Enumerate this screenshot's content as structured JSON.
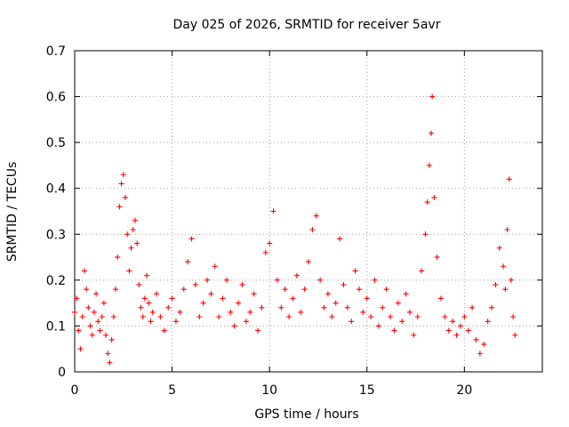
{
  "chart_data": {
    "type": "scatter",
    "title": "Day 025 of 2026, SRMTID for receiver 5avr",
    "xlabel": "GPS time / hours",
    "ylabel": "SRMTID / TECUs",
    "xlim": [
      0,
      24
    ],
    "ylim": [
      0,
      0.7
    ],
    "xticks": [
      0,
      5,
      10,
      15,
      20
    ],
    "yticks": [
      0,
      0.1,
      0.2,
      0.3,
      0.4,
      0.5,
      0.6,
      0.7
    ],
    "grid": true,
    "marker": "+",
    "color": "#ff0000",
    "series": [
      {
        "name": "SRMTID",
        "points": [
          [
            0.0,
            0.13
          ],
          [
            0.1,
            0.16
          ],
          [
            0.2,
            0.09
          ],
          [
            0.3,
            0.05
          ],
          [
            0.4,
            0.12
          ],
          [
            0.5,
            0.22
          ],
          [
            0.6,
            0.18
          ],
          [
            0.7,
            0.14
          ],
          [
            0.8,
            0.1
          ],
          [
            0.9,
            0.08
          ],
          [
            1.0,
            0.13
          ],
          [
            1.1,
            0.17
          ],
          [
            1.2,
            0.11
          ],
          [
            1.3,
            0.09
          ],
          [
            1.4,
            0.12
          ],
          [
            1.5,
            0.15
          ],
          [
            1.6,
            0.08
          ],
          [
            1.7,
            0.04
          ],
          [
            1.8,
            0.02
          ],
          [
            1.9,
            0.07
          ],
          [
            2.0,
            0.12
          ],
          [
            2.1,
            0.18
          ],
          [
            2.2,
            0.25
          ],
          [
            2.3,
            0.36
          ],
          [
            2.4,
            0.41
          ],
          [
            2.5,
            0.43
          ],
          [
            2.6,
            0.38
          ],
          [
            2.7,
            0.3
          ],
          [
            2.8,
            0.22
          ],
          [
            2.9,
            0.27
          ],
          [
            3.0,
            0.31
          ],
          [
            3.1,
            0.33
          ],
          [
            3.2,
            0.28
          ],
          [
            3.3,
            0.19
          ],
          [
            3.4,
            0.14
          ],
          [
            3.5,
            0.12
          ],
          [
            3.6,
            0.16
          ],
          [
            3.7,
            0.21
          ],
          [
            3.8,
            0.15
          ],
          [
            3.9,
            0.11
          ],
          [
            4.0,
            0.13
          ],
          [
            4.2,
            0.17
          ],
          [
            4.4,
            0.12
          ],
          [
            4.6,
            0.09
          ],
          [
            4.8,
            0.14
          ],
          [
            5.0,
            0.16
          ],
          [
            5.2,
            0.11
          ],
          [
            5.4,
            0.13
          ],
          [
            5.6,
            0.18
          ],
          [
            5.8,
            0.24
          ],
          [
            6.0,
            0.29
          ],
          [
            6.2,
            0.19
          ],
          [
            6.4,
            0.12
          ],
          [
            6.6,
            0.15
          ],
          [
            6.8,
            0.2
          ],
          [
            7.0,
            0.17
          ],
          [
            7.2,
            0.23
          ],
          [
            7.4,
            0.12
          ],
          [
            7.6,
            0.16
          ],
          [
            7.8,
            0.2
          ],
          [
            8.0,
            0.13
          ],
          [
            8.2,
            0.1
          ],
          [
            8.4,
            0.15
          ],
          [
            8.6,
            0.19
          ],
          [
            8.8,
            0.11
          ],
          [
            9.0,
            0.13
          ],
          [
            9.2,
            0.17
          ],
          [
            9.4,
            0.09
          ],
          [
            9.6,
            0.14
          ],
          [
            9.8,
            0.26
          ],
          [
            10.0,
            0.28
          ],
          [
            10.2,
            0.35
          ],
          [
            10.4,
            0.2
          ],
          [
            10.6,
            0.14
          ],
          [
            10.8,
            0.18
          ],
          [
            11.0,
            0.12
          ],
          [
            11.2,
            0.16
          ],
          [
            11.4,
            0.21
          ],
          [
            11.6,
            0.13
          ],
          [
            11.8,
            0.18
          ],
          [
            12.0,
            0.24
          ],
          [
            12.2,
            0.31
          ],
          [
            12.4,
            0.34
          ],
          [
            12.6,
            0.2
          ],
          [
            12.8,
            0.14
          ],
          [
            13.0,
            0.17
          ],
          [
            13.2,
            0.12
          ],
          [
            13.4,
            0.15
          ],
          [
            13.6,
            0.29
          ],
          [
            13.8,
            0.19
          ],
          [
            14.0,
            0.14
          ],
          [
            14.2,
            0.11
          ],
          [
            14.4,
            0.22
          ],
          [
            14.6,
            0.18
          ],
          [
            14.8,
            0.13
          ],
          [
            15.0,
            0.16
          ],
          [
            15.2,
            0.12
          ],
          [
            15.4,
            0.2
          ],
          [
            15.6,
            0.1
          ],
          [
            15.8,
            0.14
          ],
          [
            16.0,
            0.18
          ],
          [
            16.2,
            0.12
          ],
          [
            16.4,
            0.09
          ],
          [
            16.6,
            0.15
          ],
          [
            16.8,
            0.11
          ],
          [
            17.0,
            0.17
          ],
          [
            17.2,
            0.13
          ],
          [
            17.4,
            0.08
          ],
          [
            17.6,
            0.12
          ],
          [
            17.8,
            0.22
          ],
          [
            18.0,
            0.3
          ],
          [
            18.1,
            0.37
          ],
          [
            18.2,
            0.45
          ],
          [
            18.3,
            0.52
          ],
          [
            18.35,
            0.6
          ],
          [
            18.45,
            0.38
          ],
          [
            18.6,
            0.25
          ],
          [
            18.8,
            0.16
          ],
          [
            19.0,
            0.12
          ],
          [
            19.2,
            0.09
          ],
          [
            19.4,
            0.11
          ],
          [
            19.6,
            0.08
          ],
          [
            19.8,
            0.1
          ],
          [
            20.0,
            0.12
          ],
          [
            20.2,
            0.09
          ],
          [
            20.4,
            0.14
          ],
          [
            20.6,
            0.07
          ],
          [
            20.8,
            0.04
          ],
          [
            21.0,
            0.06
          ],
          [
            21.2,
            0.11
          ],
          [
            21.4,
            0.14
          ],
          [
            21.6,
            0.19
          ],
          [
            21.8,
            0.27
          ],
          [
            22.0,
            0.23
          ],
          [
            22.1,
            0.18
          ],
          [
            22.2,
            0.31
          ],
          [
            22.3,
            0.42
          ],
          [
            22.4,
            0.2
          ],
          [
            22.5,
            0.12
          ],
          [
            22.6,
            0.08
          ]
        ]
      }
    ]
  }
}
